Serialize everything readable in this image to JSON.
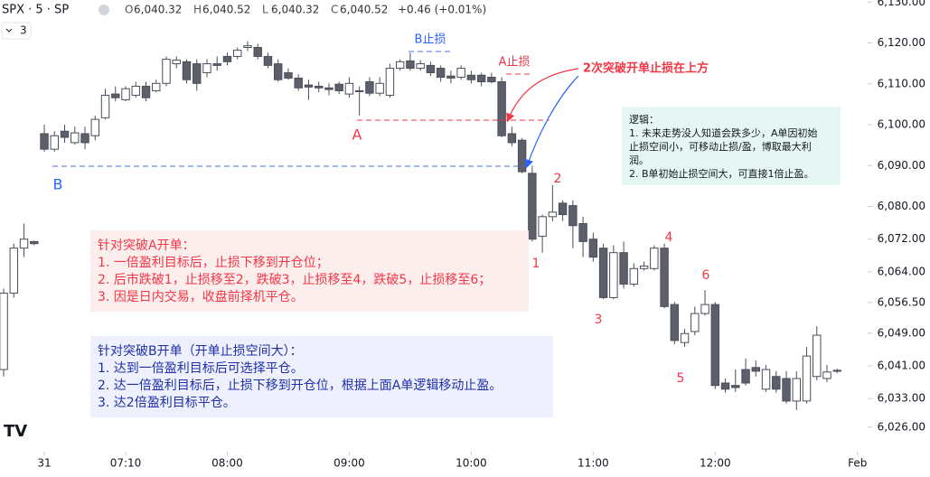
{
  "chart_data": {
    "type": "candlestick",
    "symbol": "SPX · 5 · SP",
    "ohlc_legend": [
      {
        "label": "O",
        "value": "6,040.32"
      },
      {
        "label": "H",
        "value": "6,040.52"
      },
      {
        "label": "L",
        "value": "6,040.32"
      },
      {
        "label": "C",
        "value": "6,040.52"
      }
    ],
    "change": "+0.46 (+0.01%)",
    "indicator_count": "3",
    "open": [
      6040.1,
      6058.8,
      6069.8,
      6071.4,
      6097.8,
      6094.0,
      6098.4,
      6095.6,
      6097.8,
      6097.3,
      6101.7,
      6107.5,
      6106.1,
      6107.2,
      6109.4,
      6108.3,
      6110.1,
      6114.9,
      6115.4,
      6114.9,
      6112.7,
      6114.9,
      6116.7,
      6116.7,
      6118.9,
      6118.9,
      6116.7,
      6114.9,
      6112.7,
      6111.4,
      6109.7,
      6109.4,
      6109.0,
      6109.9,
      6107.5,
      6108.3,
      6110.5,
      6107.7,
      6107.2,
      6113.8,
      6115.6,
      6113.8,
      6114.5,
      6113.8,
      6111.9,
      6111.6,
      6112.1,
      6112.1,
      6111.6,
      6110.5,
      6097.8,
      6096.2,
      6088.1,
      6072.7,
      6077.5,
      6080.8,
      6080.2,
      6075.8,
      6072.0,
      6069.8,
      6057.7,
      6068.7,
      6061.0,
      6064.8,
      6064.8,
      6069.8,
      6056.0,
      6046.7,
      6049.4,
      6053.8,
      6056.0,
      6036.8,
      6036.2,
      6040.1,
      6040.6,
      6035.3,
      6038.4,
      6037.9,
      6032.4,
      6032.4,
      6038.4,
      6037.9,
      6039.7
    ],
    "high": [
      6059.9,
      6070.9,
      6075.8,
      6071.6,
      6100.0,
      6098.4,
      6100.0,
      6099.5,
      6099.5,
      6102.2,
      6108.8,
      6109.4,
      6109.4,
      6110.5,
      6110.5,
      6111.0,
      6116.7,
      6116.7,
      6116.0,
      6116.0,
      6116.0,
      6116.7,
      6117.6,
      6118.9,
      6120.4,
      6119.8,
      6117.6,
      6116.0,
      6113.8,
      6112.3,
      6111.0,
      6110.5,
      6110.1,
      6110.5,
      6111.6,
      6109.4,
      6111.6,
      6111.6,
      6114.9,
      6116.0,
      6117.6,
      6115.8,
      6115.4,
      6114.5,
      6113.2,
      6114.5,
      6113.2,
      6112.7,
      6112.7,
      6111.6,
      6099.5,
      6096.7,
      6089.6,
      6078.0,
      6085.2,
      6081.5,
      6081.5,
      6077.5,
      6073.6,
      6070.9,
      6070.5,
      6071.4,
      6066.1,
      6066.5,
      6070.5,
      6070.9,
      6056.6,
      6050.0,
      6055.5,
      6059.5,
      6056.6,
      6037.9,
      6040.1,
      6042.8,
      6042.3,
      6041.2,
      6039.7,
      6039.7,
      6039.7,
      6045.6,
      6050.7,
      6041.2,
      6040.3
    ],
    "low": [
      6038.4,
      6057.7,
      6067.6,
      6070.5,
      6093.4,
      6093.4,
      6095.6,
      6095.1,
      6094.0,
      6096.2,
      6101.3,
      6105.7,
      6105.7,
      6106.6,
      6105.7,
      6107.9,
      6109.4,
      6113.8,
      6110.1,
      6108.3,
      6111.6,
      6113.2,
      6114.5,
      6116.0,
      6118.0,
      6116.0,
      6113.8,
      6110.5,
      6111.0,
      6108.3,
      6106.1,
      6107.9,
      6107.2,
      6107.5,
      6106.6,
      6102.2,
      6107.0,
      6107.0,
      6106.6,
      6113.2,
      6113.2,
      6113.2,
      6111.9,
      6110.5,
      6110.1,
      6111.0,
      6110.1,
      6109.4,
      6110.1,
      6096.9,
      6094.7,
      6088.1,
      6071.4,
      6068.7,
      6076.4,
      6076.4,
      6069.8,
      6067.6,
      6066.5,
      6057.3,
      6057.3,
      6059.9,
      6060.4,
      6064.3,
      6064.3,
      6055.1,
      6046.3,
      6045.6,
      6048.5,
      6053.3,
      6035.3,
      6034.4,
      6034.6,
      6036.2,
      6038.4,
      6034.6,
      6034.4,
      6031.8,
      6030.2,
      6031.8,
      6037.5,
      6037.0,
      6039.2
    ],
    "close": [
      6058.8,
      6069.8,
      6072.0,
      6070.9,
      6094.0,
      6097.3,
      6096.9,
      6098.0,
      6095.6,
      6101.3,
      6107.2,
      6106.6,
      6108.8,
      6109.4,
      6106.6,
      6110.1,
      6116.0,
      6115.8,
      6111.0,
      6110.1,
      6114.9,
      6114.5,
      6115.4,
      6118.2,
      6119.3,
      6116.7,
      6114.5,
      6111.0,
      6111.4,
      6109.0,
      6109.2,
      6109.0,
      6108.6,
      6108.3,
      6110.1,
      6108.1,
      6107.7,
      6110.1,
      6113.8,
      6115.4,
      6113.8,
      6114.9,
      6112.7,
      6111.6,
      6111.4,
      6113.8,
      6111.0,
      6110.5,
      6110.5,
      6097.3,
      6095.6,
      6088.5,
      6072.0,
      6077.5,
      6078.6,
      6078.0,
      6075.3,
      6071.4,
      6067.6,
      6057.7,
      6068.7,
      6061.0,
      6064.8,
      6065.4,
      6069.8,
      6055.5,
      6047.2,
      6048.9,
      6053.8,
      6056.0,
      6036.2,
      6035.3,
      6035.7,
      6036.8,
      6039.7,
      6040.1,
      6035.3,
      6032.4,
      6037.9,
      6043.4,
      6048.5,
      6039.5,
      6039.9
    ],
    "up_color": "#ffffff",
    "down_color": "#5d606b",
    "border_color": "#4a4e59",
    "ylim": [
      6020,
      6130.5
    ],
    "yticks": [
      {
        "value": 6130,
        "label": "6,130.00"
      },
      {
        "value": 6120,
        "label": "6,120.00"
      },
      {
        "value": 6110,
        "label": "6,110.00"
      },
      {
        "value": 6100,
        "label": "6,100.00"
      },
      {
        "value": 6090,
        "label": "6,090.00"
      },
      {
        "value": 6080,
        "label": "6,080.00"
      },
      {
        "value": 6072,
        "label": "6,072.00"
      },
      {
        "value": 6064,
        "label": "6,064.00"
      },
      {
        "value": 6056.5,
        "label": "6,056.50"
      },
      {
        "value": 6049,
        "label": "6,049.00"
      },
      {
        "value": 6041,
        "label": "6,041.00"
      },
      {
        "value": 6033,
        "label": "6,033.00"
      },
      {
        "value": 6026,
        "label": "6,026.00"
      }
    ],
    "xlim": [
      -0.36,
      85
    ],
    "xticks": [
      {
        "value": 4,
        "label": "31"
      },
      {
        "value": 12,
        "label": "07:10"
      },
      {
        "value": 22,
        "label": "08:00"
      },
      {
        "value": 34,
        "label": "09:00"
      },
      {
        "value": 46,
        "label": "10:00"
      },
      {
        "value": 58,
        "label": "11:00"
      },
      {
        "value": 70,
        "label": "12:00"
      },
      {
        "value": 84,
        "label": "Feb"
      }
    ],
    "annotations": {
      "b_stop": "B止损",
      "a_stop": "A止损",
      "second_break": "2次突破开单止损在上方",
      "label_a": "A",
      "label_b": "B",
      "marks": [
        "1",
        "2",
        "3",
        "4",
        "5",
        "6"
      ],
      "logic": [
        "逻辑：",
        "1. 未来走势没人知道会跌多少，A单因初始",
        "止损空间小，可移动止损/盈，博取最大利",
        "润。",
        "2. B单初始止损空间大，可直接1倍止盈。"
      ],
      "plan_a": [
        "针对突破A开单：",
        "1. 一倍盈利目标后，止损下移到开仓位；",
        "2. 后市跌破1，止损移至2，跌破3，止损移至4，跌破5，止损移至6；",
        "3. 因是日内交易，收盘前择机平仓。"
      ],
      "plan_b": [
        "针对突破B开单（开单止损空间大）：",
        "1. 达到一倍盈利目标后可选择平仓。",
        "2. 达一倍盈利目标后，止损下移到开仓位，根据上面A单逻辑移动止盈。",
        "3. 达2倍盈利目标平仓。"
      ]
    }
  }
}
